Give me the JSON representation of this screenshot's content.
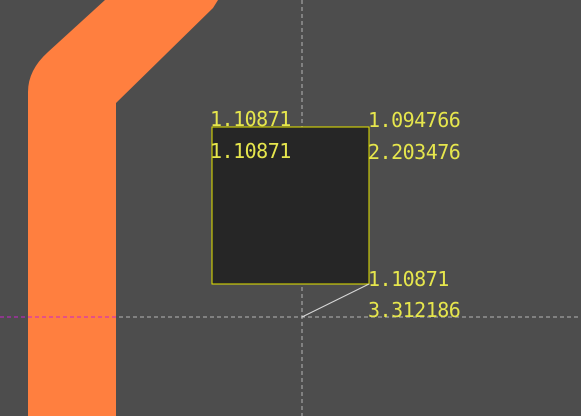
{
  "colors": {
    "background": "#4d4d4d",
    "trace": "#ff7f3f",
    "selection_fill": "#262626",
    "selection_outline": "#e6e600",
    "crosshair": "#d8d8d8",
    "measure_text": "#e6e64d",
    "axis_highlight": "#cc22cc"
  },
  "measurements": {
    "top_left_x": "1.10871",
    "top_left_y": "1.10871",
    "top_right_x": "1.094766",
    "top_right_y": "2.203476",
    "bottom_right_x": "1.10871",
    "bottom_right_y": "3.312186"
  }
}
